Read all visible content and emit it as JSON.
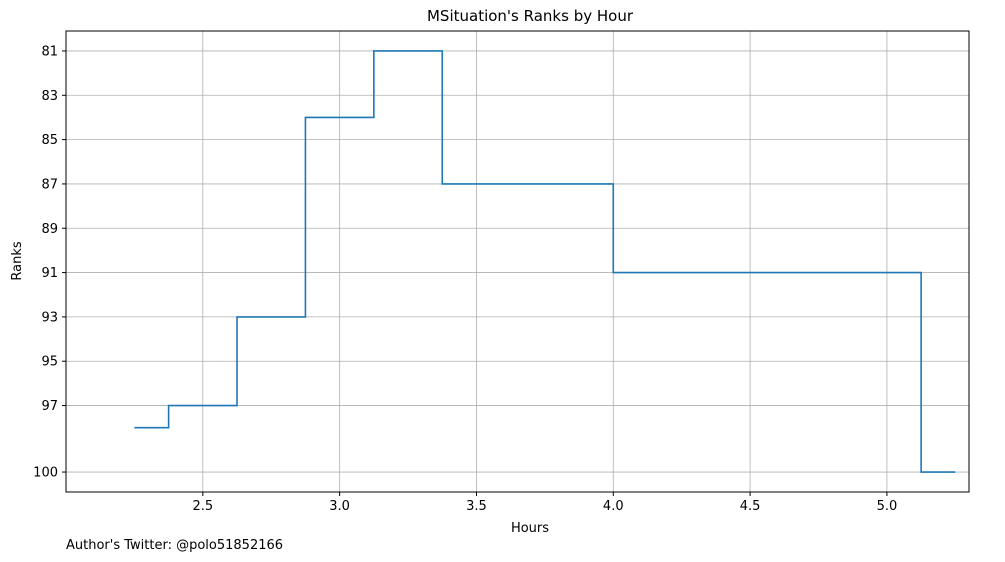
{
  "chart_data": {
    "type": "line",
    "step": "post",
    "title": "MSituation's Ranks by Hour",
    "xlabel": "Hours",
    "ylabel": "Ranks",
    "x": [
      2.25,
      2.375,
      2.625,
      2.875,
      3.125,
      3.375,
      4.0,
      5.125,
      5.25
    ],
    "y": [
      98,
      97,
      93,
      84,
      81,
      87,
      91,
      100,
      100
    ],
    "xlim": [
      2.0,
      5.3
    ],
    "ylim": [
      100.9,
      80.1
    ],
    "y_inverted": true,
    "xticks": [
      2.5,
      3.0,
      3.5,
      4.0,
      4.5,
      5.0
    ],
    "xtick_labels": [
      "2.5",
      "3.0",
      "3.5",
      "4.0",
      "4.5",
      "5.0"
    ],
    "yticks": [
      81,
      83,
      85,
      87,
      89,
      91,
      93,
      95,
      97,
      100
    ],
    "ytick_labels": [
      "81",
      "83",
      "85",
      "87",
      "89",
      "91",
      "93",
      "95",
      "97",
      "100"
    ],
    "grid": true,
    "line_color": "#1f77b4"
  },
  "footer": {
    "author_text": "Author's Twitter: @polo51852166"
  }
}
